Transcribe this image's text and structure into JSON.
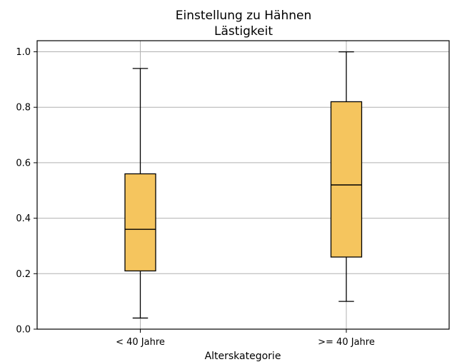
{
  "chart_data": {
    "type": "box",
    "title": "Einstellung zu Hähnen",
    "subtitle": "Lästigkeit",
    "xlabel": "Alterskategorie",
    "ylabel": "",
    "ylim": [
      0.0,
      1.04
    ],
    "yticks": [
      0.0,
      0.2,
      0.4,
      0.6,
      0.8,
      1.0
    ],
    "ytick_labels": [
      "0.0",
      "0.2",
      "0.4",
      "0.6",
      "0.8",
      "1.0"
    ],
    "grid": true,
    "box_color": "#f5c55e",
    "categories": [
      "< 40 Jahre",
      ">= 40 Jahre"
    ],
    "boxes": [
      {
        "category": "< 40 Jahre",
        "whisker_low": 0.04,
        "q1": 0.21,
        "median": 0.36,
        "q3": 0.56,
        "whisker_high": 0.94
      },
      {
        "category": ">= 40 Jahre",
        "whisker_low": 0.1,
        "q1": 0.26,
        "median": 0.52,
        "q3": 0.82,
        "whisker_high": 1.0
      }
    ]
  }
}
